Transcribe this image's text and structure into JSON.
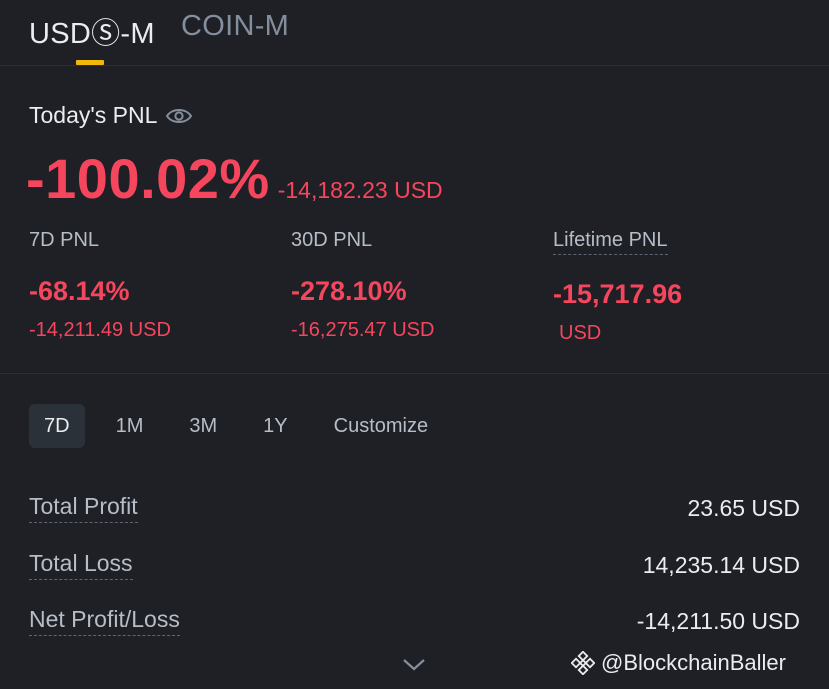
{
  "tabs": {
    "active": "USDⓈ-M",
    "inactive": "COIN-M"
  },
  "todays_pnl": {
    "label": "Today's PNL",
    "percent": "-100.02%",
    "usd": "-14,182.23 USD"
  },
  "stats": [
    {
      "label": "7D PNL",
      "percent": "-68.14%",
      "usd": "-14,211.49 USD"
    },
    {
      "label": "30D PNL",
      "percent": "-278.10%",
      "usd": "-16,275.47 USD"
    },
    {
      "label": "Lifetime PNL",
      "percent": "-15,717.96",
      "usd": "USD"
    }
  ],
  "range_buttons": [
    "7D",
    "1M",
    "3M",
    "1Y",
    "Customize"
  ],
  "range_selected": "7D",
  "summary": [
    {
      "label": "Total Profit",
      "value": "23.65 USD"
    },
    {
      "label": "Total Loss",
      "value": "14,235.14 USD"
    },
    {
      "label": "Net Profit/Loss",
      "value": "-14,211.50 USD"
    }
  ],
  "watermark": "@BlockchainBaller",
  "colors": {
    "negative": "#f6465d",
    "accent": "#f0b90b",
    "background": "#1e2026"
  },
  "icons": {
    "visibility": "eye-icon",
    "expand": "chevron-down-icon",
    "brand": "binance-icon"
  }
}
